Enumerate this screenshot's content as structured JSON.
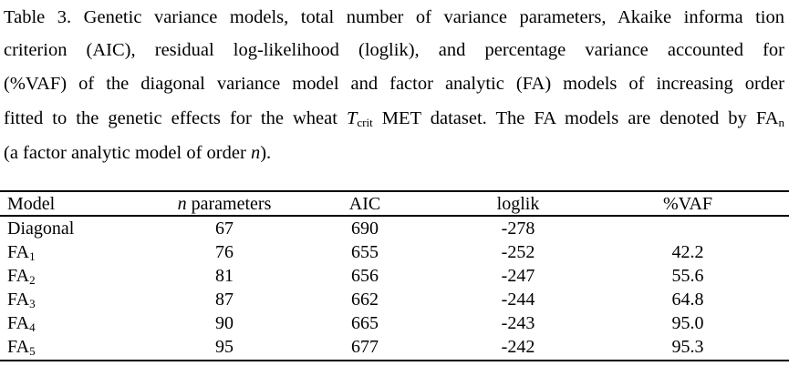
{
  "caption": {
    "line1": "Table 3. Genetic variance models, total number of variance parameters, Akaike informa tion",
    "line2": "criterion (AIC), residual log-likelihood (loglik), and percentage variance accounted for",
    "line3": "(%VAF) of the diagonal variance model and factor analytic (FA) models of increasing order",
    "line4_a": "fitted to the genetic effects for the wheat ",
    "line4_T": "T",
    "line4_sub": "crit",
    "line4_b": " MET dataset. The FA models are denoted by FA",
    "line4_n": "n",
    "line5_a": "(a factor analytic model of order ",
    "line5_n": "n",
    "line5_b": ")."
  },
  "table": {
    "headers": {
      "model": "Model",
      "n_italic": "n",
      "n_rest": " parameters",
      "aic": "AIC",
      "loglik": "loglik",
      "vaf": "%VAF"
    },
    "rows": [
      {
        "model": "Diagonal",
        "sub": "",
        "n": "67",
        "aic": "690",
        "loglik": "-278",
        "vaf": ""
      },
      {
        "model": "FA",
        "sub": "1",
        "n": "76",
        "aic": "655",
        "loglik": "-252",
        "vaf": "42.2"
      },
      {
        "model": "FA",
        "sub": "2",
        "n": "81",
        "aic": "656",
        "loglik": "-247",
        "vaf": "55.6"
      },
      {
        "model": "FA",
        "sub": "3",
        "n": "87",
        "aic": "662",
        "loglik": "-244",
        "vaf": "64.8"
      },
      {
        "model": "FA",
        "sub": "4",
        "n": "90",
        "aic": "665",
        "loglik": "-243",
        "vaf": "95.0"
      },
      {
        "model": "FA",
        "sub": "5",
        "n": "95",
        "aic": "677",
        "loglik": "-242",
        "vaf": "95.3"
      }
    ]
  }
}
